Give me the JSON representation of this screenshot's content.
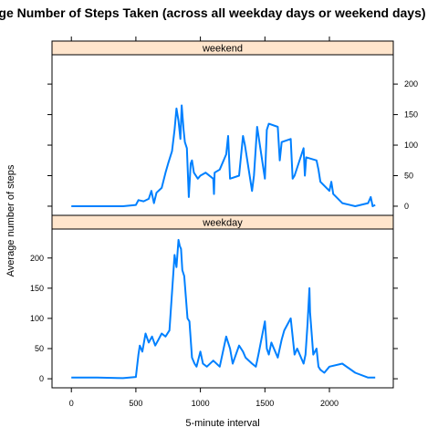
{
  "chart_data": {
    "type": "line",
    "title": "Average Number of Steps Taken (across all weekday days or weekend days)",
    "xlabel": "5-minute interval",
    "ylabel": "Average number of steps",
    "xlim": [
      -150,
      2495
    ],
    "ylim": [
      -15,
      248
    ],
    "x_ticks": [
      0,
      500,
      1000,
      1500,
      2000
    ],
    "y_ticks": [
      0,
      50,
      100,
      150,
      200
    ],
    "line_color": "#0080ff",
    "strip_color": "#ffe5cc",
    "panels": [
      {
        "name": "weekend",
        "y_axis_side": "right",
        "x": [
          0,
          300,
          400,
          500,
          520,
          560,
          600,
          620,
          640,
          660,
          700,
          730,
          750,
          780,
          800,
          815,
          830,
          845,
          855,
          870,
          880,
          895,
          910,
          925,
          935,
          950,
          980,
          1000,
          1040,
          1100,
          1105,
          1110,
          1150,
          1200,
          1215,
          1230,
          1300,
          1330,
          1345,
          1400,
          1415,
          1440,
          1500,
          1515,
          1530,
          1600,
          1615,
          1630,
          1700,
          1715,
          1730,
          1800,
          1810,
          1820,
          1900,
          1915,
          1930,
          2000,
          2015,
          2030,
          2100,
          2200,
          2300,
          2320,
          2335,
          2355
        ],
        "values": [
          0,
          0,
          0,
          2,
          10,
          8,
          12,
          25,
          5,
          22,
          30,
          55,
          70,
          90,
          125,
          160,
          140,
          110,
          165,
          125,
          105,
          95,
          15,
          70,
          75,
          55,
          45,
          50,
          55,
          45,
          20,
          55,
          60,
          85,
          115,
          45,
          50,
          115,
          100,
          25,
          50,
          130,
          45,
          125,
          135,
          130,
          75,
          105,
          110,
          45,
          50,
          95,
          50,
          80,
          75,
          60,
          40,
          25,
          40,
          20,
          5,
          0,
          5,
          15,
          0,
          2
        ]
      },
      {
        "name": "weekday",
        "y_axis_side": "left",
        "x": [
          0,
          200,
          400,
          500,
          520,
          530,
          550,
          575,
          600,
          625,
          650,
          675,
          700,
          730,
          760,
          800,
          815,
          830,
          840,
          850,
          860,
          875,
          900,
          915,
          935,
          955,
          970,
          1000,
          1020,
          1050,
          1100,
          1150,
          1200,
          1215,
          1230,
          1250,
          1300,
          1330,
          1350,
          1400,
          1430,
          1450,
          1500,
          1515,
          1530,
          1550,
          1600,
          1630,
          1650,
          1700,
          1730,
          1750,
          1800,
          1815,
          1830,
          1845,
          1850,
          1875,
          1900,
          1915,
          1930,
          1960,
          2000,
          2100,
          2200,
          2300,
          2355
        ],
        "values": [
          2,
          2,
          1,
          3,
          40,
          55,
          45,
          75,
          60,
          70,
          55,
          65,
          75,
          70,
          80,
          205,
          185,
          230,
          220,
          215,
          180,
          170,
          100,
          95,
          35,
          25,
          20,
          45,
          25,
          20,
          30,
          20,
          70,
          60,
          50,
          25,
          55,
          45,
          35,
          25,
          20,
          40,
          95,
          50,
          40,
          60,
          35,
          65,
          80,
          100,
          40,
          50,
          25,
          40,
          90,
          150,
          110,
          40,
          50,
          20,
          15,
          10,
          20,
          25,
          10,
          2,
          2
        ]
      }
    ]
  }
}
